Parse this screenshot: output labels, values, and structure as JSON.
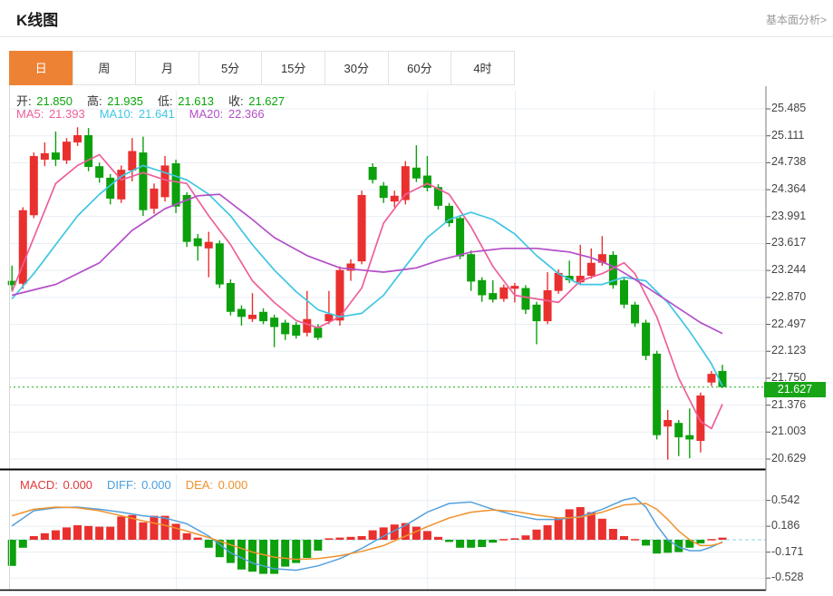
{
  "header": {
    "title": "K线图",
    "link": "基本面分析>"
  },
  "tabs": {
    "items": [
      "日",
      "周",
      "月",
      "5分",
      "15分",
      "30分",
      "60分",
      "4时"
    ],
    "active_index": 0,
    "active_color": "#ed8235"
  },
  "legend_ohlc": {
    "items": [
      {
        "key": "open",
        "label": "开:",
        "value": "21.850"
      },
      {
        "key": "high",
        "label": "高:",
        "value": "21.935"
      },
      {
        "key": "low",
        "label": "低:",
        "value": "21.613"
      },
      {
        "key": "close",
        "label": "收:",
        "value": "21.627"
      }
    ],
    "value_color": "#09a609"
  },
  "legend_ma": {
    "items": [
      {
        "key": "ma5",
        "label": "MA5:",
        "value": "21.393",
        "color": "#ee5f9a"
      },
      {
        "key": "ma10",
        "label": "MA10:",
        "value": "21.641",
        "color": "#3fc6e3"
      },
      {
        "key": "ma20",
        "label": "MA20:",
        "value": "22.366",
        "color": "#b44fc8"
      }
    ]
  },
  "legend_macd": {
    "items": [
      {
        "key": "macd",
        "label": "MACD:",
        "value": "0.000",
        "color": "#e23a3a"
      },
      {
        "key": "diff",
        "label": "DIFF:",
        "value": "0.000",
        "color": "#4a9ede"
      },
      {
        "key": "dea",
        "label": "DEA:",
        "value": "0.000",
        "color": "#f0912c"
      }
    ]
  },
  "price_axis": {
    "ticks": [
      25.485,
      25.111,
      24.738,
      24.364,
      23.991,
      23.617,
      23.244,
      22.87,
      22.497,
      22.123,
      21.75,
      21.376,
      21.003,
      20.629
    ],
    "last_price": "21.627",
    "badge_color": "#17a517"
  },
  "macd_axis": {
    "ticks": [
      0.542,
      0.186,
      -0.171,
      -0.528
    ]
  },
  "chart_data": {
    "type": "candlestick",
    "title": "K线图",
    "period": "日",
    "up_color": "#e9302e",
    "down_color": "#0ca00c",
    "current_price": 21.627,
    "current_price_line_color": "#2eb82e",
    "ylim": [
      20.44,
      25.67
    ],
    "candles_ohlc": [
      [
        23.1,
        23.31,
        22.97,
        23.04
      ],
      [
        23.06,
        24.12,
        22.99,
        24.08
      ],
      [
        24.01,
        24.88,
        23.97,
        24.83
      ],
      [
        24.78,
        25.02,
        24.69,
        24.87
      ],
      [
        24.88,
        25.17,
        24.69,
        24.78
      ],
      [
        24.77,
        25.08,
        24.72,
        25.03
      ],
      [
        25.02,
        25.23,
        24.97,
        25.12
      ],
      [
        25.12,
        25.22,
        24.62,
        24.68
      ],
      [
        24.69,
        24.74,
        24.46,
        24.53
      ],
      [
        24.53,
        24.58,
        24.16,
        24.24
      ],
      [
        24.23,
        24.7,
        24.18,
        24.64
      ],
      [
        24.63,
        25.08,
        24.48,
        24.9
      ],
      [
        24.88,
        25.1,
        24.0,
        24.08
      ],
      [
        24.1,
        24.45,
        24.03,
        24.38
      ],
      [
        24.26,
        24.83,
        24.2,
        24.7
      ],
      [
        24.73,
        24.78,
        24.04,
        24.13
      ],
      [
        24.29,
        24.33,
        23.57,
        23.64
      ],
      [
        23.69,
        23.75,
        23.38,
        23.58
      ],
      [
        23.55,
        23.78,
        23.15,
        23.64
      ],
      [
        23.62,
        23.66,
        23.0,
        23.05
      ],
      [
        23.07,
        23.12,
        22.62,
        22.67
      ],
      [
        22.71,
        22.76,
        22.48,
        22.6
      ],
      [
        22.57,
        22.93,
        22.53,
        22.63
      ],
      [
        22.67,
        22.72,
        22.5,
        22.54
      ],
      [
        22.59,
        22.63,
        22.18,
        22.46
      ],
      [
        22.52,
        22.56,
        22.28,
        22.36
      ],
      [
        22.49,
        22.53,
        22.3,
        22.34
      ],
      [
        22.38,
        22.96,
        22.33,
        22.57
      ],
      [
        22.45,
        22.5,
        22.28,
        22.31
      ],
      [
        22.54,
        22.96,
        22.5,
        22.64
      ],
      [
        22.55,
        23.3,
        22.48,
        23.25
      ],
      [
        23.24,
        23.4,
        23.1,
        23.34
      ],
      [
        23.37,
        24.35,
        23.33,
        24.29
      ],
      [
        24.68,
        24.73,
        24.45,
        24.5
      ],
      [
        24.42,
        24.47,
        24.18,
        24.25
      ],
      [
        24.2,
        24.35,
        24.12,
        24.28
      ],
      [
        24.22,
        24.76,
        24.16,
        24.69
      ],
      [
        24.67,
        24.98,
        24.47,
        24.52
      ],
      [
        24.56,
        24.83,
        24.34,
        24.39
      ],
      [
        24.4,
        24.44,
        24.09,
        24.14
      ],
      [
        24.14,
        24.18,
        23.85,
        23.9
      ],
      [
        23.97,
        24.01,
        23.4,
        23.44
      ],
      [
        23.47,
        23.52,
        22.96,
        23.09
      ],
      [
        23.11,
        23.15,
        22.81,
        22.9
      ],
      [
        22.93,
        23.11,
        22.8,
        22.84
      ],
      [
        22.85,
        23.05,
        22.81,
        23.01
      ],
      [
        22.99,
        23.07,
        22.8,
        23.03
      ],
      [
        23.0,
        23.04,
        22.64,
        22.7
      ],
      [
        22.77,
        22.81,
        22.22,
        22.54
      ],
      [
        22.54,
        23.22,
        22.5,
        22.97
      ],
      [
        22.96,
        23.26,
        22.92,
        23.21
      ],
      [
        23.17,
        23.38,
        23.07,
        23.11
      ],
      [
        23.08,
        23.6,
        23.04,
        23.17
      ],
      [
        23.17,
        23.55,
        23.13,
        23.35
      ],
      [
        23.35,
        23.72,
        23.31,
        23.47
      ],
      [
        23.46,
        23.51,
        22.99,
        23.04
      ],
      [
        23.11,
        23.15,
        22.72,
        22.77
      ],
      [
        22.77,
        22.81,
        22.46,
        22.51
      ],
      [
        22.52,
        22.56,
        22.0,
        22.06
      ],
      [
        22.09,
        22.13,
        20.9,
        20.96
      ],
      [
        21.08,
        21.31,
        20.62,
        21.17
      ],
      [
        21.13,
        21.17,
        20.67,
        20.93
      ],
      [
        20.96,
        21.33,
        20.64,
        20.9
      ],
      [
        20.88,
        21.55,
        20.72,
        21.51
      ],
      [
        21.69,
        21.85,
        21.64,
        21.81
      ],
      [
        21.85,
        21.935,
        21.613,
        21.627
      ]
    ],
    "ma_lines": [
      {
        "name": "MA5",
        "color": "#ee5f9a",
        "points": [
          [
            0,
            22.95
          ],
          [
            2,
            23.7
          ],
          [
            4,
            24.45
          ],
          [
            6,
            24.7
          ],
          [
            8,
            24.85
          ],
          [
            10,
            24.5
          ],
          [
            12,
            24.6
          ],
          [
            14,
            24.5
          ],
          [
            16,
            24.45
          ],
          [
            18,
            24.0
          ],
          [
            20,
            23.6
          ],
          [
            22,
            23.1
          ],
          [
            24,
            22.8
          ],
          [
            26,
            22.55
          ],
          [
            28,
            22.45
          ],
          [
            30,
            22.6
          ],
          [
            32,
            23.0
          ],
          [
            34,
            23.9
          ],
          [
            36,
            24.3
          ],
          [
            38,
            24.45
          ],
          [
            40,
            24.3
          ],
          [
            42,
            23.85
          ],
          [
            44,
            23.3
          ],
          [
            46,
            22.9
          ],
          [
            48,
            22.85
          ],
          [
            50,
            22.8
          ],
          [
            52,
            23.1
          ],
          [
            54,
            23.2
          ],
          [
            56,
            23.35
          ],
          [
            57,
            23.2
          ],
          [
            59,
            22.6
          ],
          [
            61,
            21.75
          ],
          [
            63,
            21.15
          ],
          [
            64,
            21.05
          ],
          [
            65,
            21.39
          ]
        ]
      },
      {
        "name": "MA10",
        "color": "#3fc6e3",
        "points": [
          [
            0,
            22.85
          ],
          [
            2,
            23.2
          ],
          [
            4,
            23.6
          ],
          [
            6,
            24.0
          ],
          [
            8,
            24.3
          ],
          [
            10,
            24.55
          ],
          [
            12,
            24.7
          ],
          [
            14,
            24.6
          ],
          [
            16,
            24.5
          ],
          [
            18,
            24.3
          ],
          [
            20,
            24.0
          ],
          [
            22,
            23.6
          ],
          [
            24,
            23.25
          ],
          [
            26,
            22.95
          ],
          [
            28,
            22.7
          ],
          [
            30,
            22.6
          ],
          [
            32,
            22.65
          ],
          [
            34,
            22.9
          ],
          [
            36,
            23.3
          ],
          [
            38,
            23.7
          ],
          [
            40,
            23.95
          ],
          [
            42,
            24.05
          ],
          [
            44,
            23.95
          ],
          [
            46,
            23.75
          ],
          [
            48,
            23.45
          ],
          [
            50,
            23.2
          ],
          [
            52,
            23.05
          ],
          [
            54,
            23.05
          ],
          [
            56,
            23.15
          ],
          [
            58,
            23.1
          ],
          [
            60,
            22.8
          ],
          [
            62,
            22.4
          ],
          [
            64,
            21.95
          ],
          [
            65,
            21.64
          ]
        ]
      },
      {
        "name": "MA20",
        "color": "#b44fc8",
        "points": [
          [
            0,
            22.9
          ],
          [
            4,
            23.05
          ],
          [
            8,
            23.35
          ],
          [
            11,
            23.8
          ],
          [
            14,
            24.1
          ],
          [
            17,
            24.28
          ],
          [
            19,
            24.3
          ],
          [
            22,
            23.95
          ],
          [
            24,
            23.7
          ],
          [
            27,
            23.45
          ],
          [
            30,
            23.28
          ],
          [
            34,
            23.22
          ],
          [
            37,
            23.28
          ],
          [
            39,
            23.38
          ],
          [
            42,
            23.5
          ],
          [
            45,
            23.55
          ],
          [
            48,
            23.55
          ],
          [
            51,
            23.5
          ],
          [
            53,
            23.42
          ],
          [
            55,
            23.3
          ],
          [
            57,
            23.12
          ],
          [
            59,
            22.92
          ],
          [
            61,
            22.72
          ],
          [
            63,
            22.52
          ],
          [
            65,
            22.37
          ]
        ]
      }
    ],
    "macd": {
      "hist": [
        -0.36,
        -0.11,
        0.05,
        0.09,
        0.13,
        0.17,
        0.2,
        0.19,
        0.18,
        0.18,
        0.32,
        0.34,
        0.24,
        0.33,
        0.33,
        0.22,
        0.09,
        0.03,
        -0.11,
        -0.24,
        -0.32,
        -0.41,
        -0.44,
        -0.47,
        -0.47,
        -0.37,
        -0.32,
        -0.25,
        -0.15,
        0.02,
        0.03,
        0.04,
        0.05,
        0.13,
        0.17,
        0.21,
        0.23,
        0.18,
        0.12,
        0.04,
        -0.03,
        -0.11,
        -0.11,
        -0.1,
        -0.04,
        0.01,
        0.02,
        0.06,
        0.14,
        0.2,
        0.3,
        0.42,
        0.45,
        0.38,
        0.29,
        0.15,
        0.05,
        0.01,
        -0.08,
        -0.19,
        -0.18,
        -0.17,
        -0.11,
        -0.05,
        0.01,
        0.03
      ],
      "hist_up_color": "#e9302e",
      "hist_down_color": "#0ca00c",
      "zero_line_color": "#8fd0e8",
      "diff_line": {
        "name": "DIFF",
        "color": "#55a0dd",
        "points": [
          [
            0,
            0.19
          ],
          [
            2,
            0.4
          ],
          [
            4,
            0.44
          ],
          [
            6,
            0.45
          ],
          [
            8,
            0.42
          ],
          [
            10,
            0.38
          ],
          [
            12,
            0.33
          ],
          [
            14,
            0.3
          ],
          [
            16,
            0.22
          ],
          [
            18,
            0.05
          ],
          [
            20,
            -0.18
          ],
          [
            22,
            -0.32
          ],
          [
            24,
            -0.4
          ],
          [
            26,
            -0.42
          ],
          [
            28,
            -0.36
          ],
          [
            30,
            -0.26
          ],
          [
            32,
            -0.12
          ],
          [
            34,
            0.05
          ],
          [
            36,
            0.2
          ],
          [
            38,
            0.38
          ],
          [
            40,
            0.5
          ],
          [
            42,
            0.52
          ],
          [
            44,
            0.42
          ],
          [
            46,
            0.34
          ],
          [
            48,
            0.28
          ],
          [
            50,
            0.28
          ],
          [
            52,
            0.32
          ],
          [
            54,
            0.42
          ],
          [
            56,
            0.55
          ],
          [
            57,
            0.58
          ],
          [
            58,
            0.45
          ],
          [
            59,
            0.2
          ],
          [
            60,
            0.0
          ],
          [
            61,
            -0.1
          ],
          [
            62,
            -0.15
          ],
          [
            63,
            -0.15
          ],
          [
            64,
            -0.1
          ],
          [
            65,
            -0.03
          ]
        ]
      },
      "dea_line": {
        "name": "DEA",
        "color": "#f0912c",
        "points": [
          [
            0,
            0.33
          ],
          [
            2,
            0.42
          ],
          [
            4,
            0.45
          ],
          [
            6,
            0.44
          ],
          [
            8,
            0.4
          ],
          [
            10,
            0.33
          ],
          [
            12,
            0.26
          ],
          [
            14,
            0.2
          ],
          [
            16,
            0.12
          ],
          [
            18,
            0.03
          ],
          [
            20,
            -0.07
          ],
          [
            22,
            -0.17
          ],
          [
            24,
            -0.24
          ],
          [
            26,
            -0.27
          ],
          [
            28,
            -0.26
          ],
          [
            30,
            -0.22
          ],
          [
            32,
            -0.16
          ],
          [
            34,
            -0.08
          ],
          [
            36,
            0.05
          ],
          [
            38,
            0.18
          ],
          [
            40,
            0.3
          ],
          [
            42,
            0.38
          ],
          [
            44,
            0.41
          ],
          [
            46,
            0.39
          ],
          [
            48,
            0.34
          ],
          [
            50,
            0.3
          ],
          [
            52,
            0.31
          ],
          [
            54,
            0.38
          ],
          [
            56,
            0.48
          ],
          [
            58,
            0.5
          ],
          [
            59,
            0.42
          ],
          [
            60,
            0.28
          ],
          [
            61,
            0.12
          ],
          [
            62,
            0.0
          ],
          [
            63,
            -0.08
          ],
          [
            64,
            -0.08
          ],
          [
            65,
            -0.04
          ]
        ]
      }
    }
  }
}
